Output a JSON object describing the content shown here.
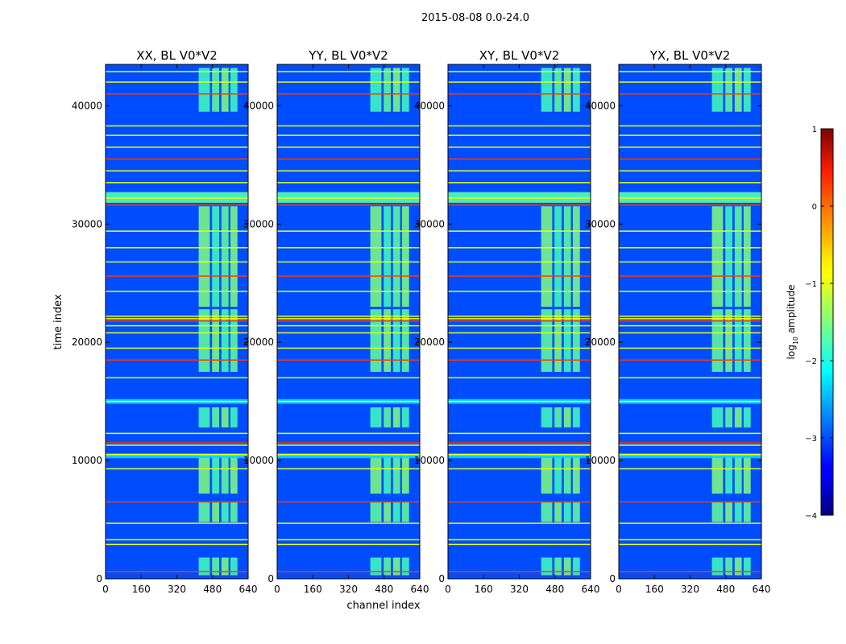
{
  "chart_data": {
    "type": "heatmap",
    "suptitle": "2015-08-08 0.0-24.0",
    "xlabel": "channel index",
    "ylabel": "time index",
    "xlim": [
      0,
      640
    ],
    "ylim": [
      0,
      43500
    ],
    "xticks": [
      0,
      160,
      320,
      480,
      640
    ],
    "yticks": [
      0,
      10000,
      20000,
      30000,
      40000
    ],
    "panels": [
      {
        "title": "XX, BL V0*V2"
      },
      {
        "title": "YY, BL V0*V2"
      },
      {
        "title": "XY, BL V0*V2"
      },
      {
        "title": "YX, BL V0*V2"
      }
    ],
    "colorbar": {
      "label": "log",
      "label_sub": "10",
      "label_rest": " amplitude",
      "range": [
        -4,
        1
      ],
      "ticks": [
        1,
        0,
        -1,
        -2,
        -3,
        -4
      ],
      "tick_labels": [
        "1",
        "0",
        "−1",
        "−2",
        "−3",
        "−4"
      ]
    },
    "features": {
      "background_log10_amp": -3.0,
      "rfi_channel_blocks": [
        [
          418,
          468
        ],
        [
          478,
          510
        ],
        [
          520,
          552
        ],
        [
          560,
          592
        ]
      ],
      "active_time_ranges": [
        [
          300,
          1800
        ],
        [
          4800,
          6500
        ],
        [
          7200,
          10500
        ],
        [
          12800,
          14500
        ],
        [
          17500,
          22800
        ],
        [
          23000,
          31500
        ],
        [
          39500,
          43200
        ]
      ],
      "flagged_rows": [
        600,
        2900,
        3300,
        4700,
        6500,
        9300,
        10500,
        11300,
        11500,
        12300,
        15000,
        17000,
        18500,
        19500,
        20800,
        21400,
        21800,
        22000,
        22200,
        24300,
        25600,
        26800,
        28000,
        29400,
        31600,
        32200,
        33500,
        34500,
        35500,
        36500,
        37500,
        38300,
        41000,
        42000,
        42900
      ],
      "bright_bands": [
        [
          31800,
          32700
        ],
        [
          14800,
          15200
        ],
        [
          10200,
          10600
        ]
      ]
    }
  }
}
